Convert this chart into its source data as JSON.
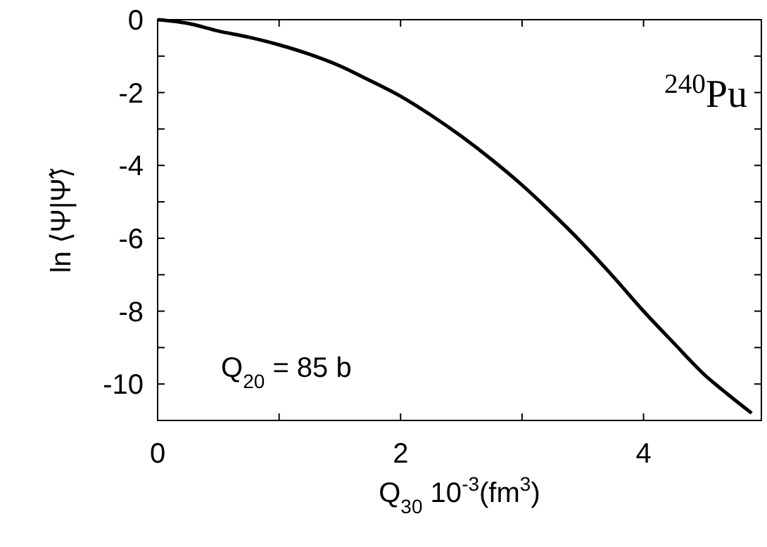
{
  "chart_data": {
    "type": "line",
    "xlabel": "Q$_{30}$ 10$^{-3}$(fm$^{3}$)",
    "ylabel": "ln ⟨Ψ|Ψ̃⟩",
    "annotations": [
      "$^{240}$Pu",
      "Q$_{20}$ = 85 b"
    ],
    "x": [
      0,
      0.25,
      0.5,
      0.75,
      1,
      1.25,
      1.5,
      1.7,
      2,
      2.25,
      2.5,
      2.75,
      3,
      3.25,
      3.5,
      3.75,
      4,
      4.25,
      4.5,
      4.7,
      4.89
    ],
    "series": [
      {
        "color": "#000000",
        "values": [
          0,
          -0.1,
          -0.31,
          -0.48,
          -0.69,
          -0.95,
          -1.27,
          -1.59,
          -2.1,
          -2.62,
          -3.2,
          -3.84,
          -4.54,
          -5.32,
          -6.15,
          -7.05,
          -8.0,
          -8.88,
          -9.74,
          -10.3,
          -10.8
        ]
      }
    ],
    "xlim": [
      0,
      4.97
    ],
    "ylim": [
      -11,
      0
    ],
    "xticks": [
      0,
      {
        "value": 1,
        "label": null
      },
      2,
      {
        "value": 3,
        "label": null
      },
      4
    ],
    "yticks": [
      0,
      {
        "value": -1,
        "label": null
      },
      -2,
      {
        "value": -3,
        "label": null
      },
      -4,
      {
        "value": -5,
        "label": null
      },
      -6,
      {
        "value": -7,
        "label": null
      },
      -8,
      {
        "value": -9,
        "label": null
      },
      -10
    ],
    "grid": false,
    "marker": "none",
    "line_style": "solid"
  }
}
